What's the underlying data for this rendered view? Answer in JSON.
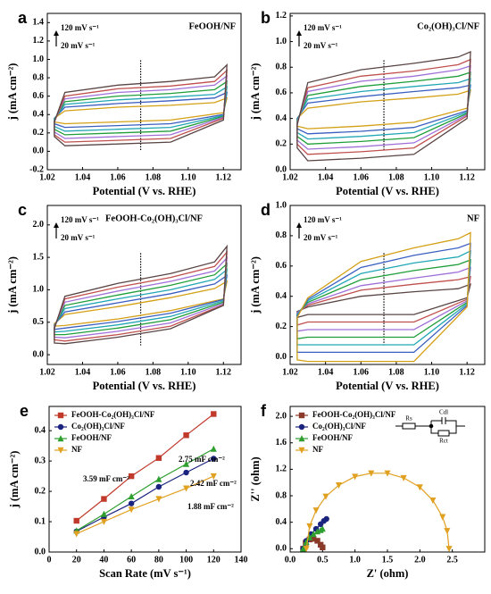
{
  "chart_data": [
    {
      "type": "line",
      "closed": true,
      "panel_label": "a",
      "sample": "FeOOH/NF",
      "sample_color": "#1f9e3a",
      "scan_high": "120 mV s⁻¹",
      "scan_low": "20 mV s⁻¹",
      "vline": 1.073,
      "x_label": "Potential (V vs. RHE)",
      "y_label": "j (mA cm⁻²)",
      "xlim": [
        1.02,
        1.13
      ],
      "xticks": [
        1.02,
        1.04,
        1.06,
        1.08,
        {
          "value": 1.1,
          "label": "1.10"
        },
        1.12
      ],
      "ylim": [
        -0.2,
        1.5
      ],
      "yticks": [
        -0.2,
        {
          "value": 0,
          "label": "0.0"
        },
        0.2,
        0.4,
        0.6,
        0.8,
        {
          "value": 1,
          "label": "1.0"
        },
        1.2,
        1.4
      ],
      "x": [
        1.024,
        1.03,
        1.06,
        1.09,
        1.115,
        1.122,
        1.12,
        1.09,
        1.06,
        1.03,
        1.024
      ],
      "series": [
        {
          "color": "#d4a017",
          "values": [
            0.36,
            0.44,
            0.48,
            0.5,
            0.53,
            0.58,
            0.42,
            0.34,
            0.32,
            0.3,
            0.32
          ]
        },
        {
          "color": "#3b5fc0",
          "values": [
            0.36,
            0.48,
            0.52,
            0.55,
            0.58,
            0.64,
            0.4,
            0.3,
            0.28,
            0.26,
            0.3
          ]
        },
        {
          "color": "#23a7b5",
          "values": [
            0.35,
            0.51,
            0.56,
            0.59,
            0.62,
            0.7,
            0.39,
            0.26,
            0.24,
            0.22,
            0.27
          ]
        },
        {
          "color": "#1f9e3a",
          "values": [
            0.34,
            0.54,
            0.6,
            0.63,
            0.67,
            0.76,
            0.38,
            0.22,
            0.2,
            0.18,
            0.24
          ]
        },
        {
          "color": "#a070d8",
          "values": [
            0.33,
            0.57,
            0.64,
            0.67,
            0.72,
            0.82,
            0.37,
            0.18,
            0.16,
            0.14,
            0.21
          ]
        },
        {
          "color": "#c0504d",
          "values": [
            0.32,
            0.6,
            0.68,
            0.71,
            0.76,
            0.88,
            0.36,
            0.14,
            0.12,
            0.1,
            0.18
          ]
        },
        {
          "color": "#5a4545",
          "values": [
            0.32,
            0.64,
            0.72,
            0.76,
            0.81,
            0.94,
            0.34,
            0.1,
            0.08,
            0.06,
            0.16
          ]
        }
      ]
    },
    {
      "type": "line",
      "closed": true,
      "panel_label": "b",
      "sample": "Co₂(OH)₃Cl/NF",
      "sample_color": "#1a237e",
      "scan_high": "120 mV s⁻¹",
      "scan_low": "20 mV s⁻¹",
      "vline": 1.073,
      "x_label": "Potential (V vs. RHE)",
      "y_label": "j (mA cm⁻²)",
      "xlim": [
        1.02,
        1.13
      ],
      "xticks": [
        1.02,
        1.04,
        1.06,
        1.08,
        {
          "value": 1.1,
          "label": "1.10"
        },
        1.12
      ],
      "ylim": [
        0,
        1.22
      ],
      "yticks": [
        {
          "value": 0,
          "label": "0.0"
        },
        0.2,
        0.4,
        0.6,
        0.8,
        {
          "value": 1,
          "label": "1.0"
        },
        1.2
      ],
      "x": [
        1.024,
        1.03,
        1.06,
        1.09,
        1.115,
        1.122,
        1.12,
        1.09,
        1.06,
        1.03,
        1.024
      ],
      "series": [
        {
          "color": "#d4a017",
          "values": [
            0.4,
            0.48,
            0.53,
            0.56,
            0.59,
            0.62,
            0.48,
            0.37,
            0.34,
            0.32,
            0.34
          ]
        },
        {
          "color": "#3b5fc0",
          "values": [
            0.4,
            0.52,
            0.57,
            0.61,
            0.64,
            0.66,
            0.46,
            0.33,
            0.3,
            0.28,
            0.32
          ]
        },
        {
          "color": "#23a7b5",
          "values": [
            0.39,
            0.55,
            0.61,
            0.65,
            0.68,
            0.71,
            0.45,
            0.29,
            0.26,
            0.24,
            0.29
          ]
        },
        {
          "color": "#1f9e3a",
          "values": [
            0.38,
            0.58,
            0.65,
            0.69,
            0.73,
            0.76,
            0.44,
            0.25,
            0.22,
            0.2,
            0.26
          ]
        },
        {
          "color": "#a070d8",
          "values": [
            0.37,
            0.61,
            0.69,
            0.73,
            0.78,
            0.81,
            0.43,
            0.21,
            0.18,
            0.16,
            0.23
          ]
        },
        {
          "color": "#c0504d",
          "values": [
            0.36,
            0.64,
            0.73,
            0.77,
            0.82,
            0.86,
            0.42,
            0.17,
            0.14,
            0.12,
            0.2
          ]
        },
        {
          "color": "#5a4545",
          "values": [
            0.35,
            0.68,
            0.78,
            0.83,
            0.88,
            0.92,
            0.4,
            0.12,
            0.09,
            0.07,
            0.17
          ]
        }
      ]
    },
    {
      "type": "line",
      "closed": true,
      "panel_label": "c",
      "sample": "FeOOH-Co₂(OH)₃Cl/NF",
      "sample_color": "#a0302a",
      "scan_high": "120 mV s⁻¹",
      "scan_low": "20 mV s⁻¹",
      "vline": 1.073,
      "x_label": "Potential (V vs. RHE)",
      "y_label": "j (mA cm⁻²)",
      "xlim": [
        1.02,
        1.13
      ],
      "xticks": [
        1.02,
        1.04,
        1.06,
        1.08,
        {
          "value": 1.1,
          "label": "1.10"
        },
        1.12
      ],
      "ylim": [
        -0.15,
        2.3
      ],
      "yticks": [
        {
          "value": 0,
          "label": "0.0"
        },
        0.5,
        {
          "value": 1,
          "label": "1.0"
        },
        1.5,
        {
          "value": 2,
          "label": "2.0"
        }
      ],
      "x": [
        1.024,
        1.03,
        1.06,
        1.09,
        1.115,
        1.122,
        1.12,
        1.09,
        1.06,
        1.03,
        1.024
      ],
      "series": [
        {
          "color": "#d4a017",
          "values": [
            0.48,
            0.62,
            0.74,
            0.88,
            1.02,
            1.13,
            0.86,
            0.68,
            0.55,
            0.45,
            0.44
          ]
        },
        {
          "color": "#3b5fc0",
          "values": [
            0.46,
            0.66,
            0.8,
            0.94,
            1.09,
            1.22,
            0.85,
            0.64,
            0.51,
            0.41,
            0.39
          ]
        },
        {
          "color": "#23a7b5",
          "values": [
            0.45,
            0.71,
            0.86,
            1.0,
            1.16,
            1.31,
            0.83,
            0.59,
            0.46,
            0.36,
            0.35
          ]
        },
        {
          "color": "#1f9e3a",
          "values": [
            0.44,
            0.76,
            0.92,
            1.07,
            1.23,
            1.4,
            0.81,
            0.54,
            0.41,
            0.31,
            0.31
          ]
        },
        {
          "color": "#a070d8",
          "values": [
            0.43,
            0.81,
            0.98,
            1.13,
            1.29,
            1.49,
            0.79,
            0.49,
            0.36,
            0.26,
            0.27
          ]
        },
        {
          "color": "#c0504d",
          "values": [
            0.42,
            0.86,
            1.04,
            1.19,
            1.36,
            1.58,
            0.77,
            0.44,
            0.31,
            0.21,
            0.23
          ]
        },
        {
          "color": "#5a4545",
          "values": [
            0.4,
            0.9,
            1.1,
            1.25,
            1.43,
            1.67,
            0.76,
            0.4,
            0.27,
            0.17,
            0.18
          ]
        }
      ]
    },
    {
      "type": "line",
      "closed": true,
      "panel_label": "d",
      "sample": "NF",
      "sample_color": "#e0a020",
      "scan_high": "120 mV s⁻¹",
      "scan_low": "20 mV s⁻¹",
      "vline": 1.073,
      "x_label": "Potential (V vs. RHE)",
      "y_label": "j (mA cm⁻²)",
      "xlim": [
        1.02,
        1.13
      ],
      "xticks": [
        1.02,
        1.04,
        1.06,
        1.08,
        {
          "value": 1.1,
          "label": "1.10"
        },
        1.12
      ],
      "ylim": [
        -0.05,
        1.0
      ],
      "yticks": [
        {
          "value": 0,
          "label": "0.0"
        },
        0.2,
        0.4,
        0.6,
        0.8,
        {
          "value": 1,
          "label": "1.0"
        }
      ],
      "x": [
        1.024,
        1.03,
        1.06,
        1.09,
        1.115,
        1.122,
        1.12,
        1.09,
        1.06,
        1.03,
        1.024
      ],
      "series": [
        {
          "color": "#5a4545",
          "values": [
            0.3,
            0.33,
            0.4,
            0.43,
            0.45,
            0.48,
            0.39,
            0.28,
            0.28,
            0.28,
            0.26
          ]
        },
        {
          "color": "#c0504d",
          "values": [
            0.29,
            0.34,
            0.44,
            0.48,
            0.51,
            0.53,
            0.38,
            0.23,
            0.23,
            0.23,
            0.21
          ]
        },
        {
          "color": "#a070d8",
          "values": [
            0.29,
            0.35,
            0.47,
            0.52,
            0.56,
            0.59,
            0.37,
            0.18,
            0.18,
            0.18,
            0.17
          ]
        },
        {
          "color": "#1f9e3a",
          "values": [
            0.28,
            0.36,
            0.51,
            0.57,
            0.61,
            0.64,
            0.36,
            0.13,
            0.13,
            0.13,
            0.12
          ]
        },
        {
          "color": "#23a7b5",
          "values": [
            0.28,
            0.37,
            0.55,
            0.62,
            0.66,
            0.7,
            0.35,
            0.08,
            0.08,
            0.08,
            0.08
          ]
        },
        {
          "color": "#3b5fc0",
          "values": [
            0.27,
            0.38,
            0.59,
            0.67,
            0.72,
            0.75,
            0.34,
            0.03,
            0.03,
            0.03,
            0.03
          ]
        },
        {
          "color": "#d4a017",
          "values": [
            0.26,
            0.39,
            0.63,
            0.72,
            0.78,
            0.82,
            0.33,
            -0.03,
            -0.03,
            -0.03,
            -0.02
          ]
        }
      ]
    },
    {
      "type": "scatter",
      "panel_label": "e",
      "x_label": "Scan Rate (mV s⁻¹)",
      "y_label": "j (mA cm⁻²)",
      "xlim": [
        0,
        140
      ],
      "xticks": [
        0,
        20,
        40,
        60,
        80,
        100,
        120,
        140
      ],
      "ylim": [
        0,
        0.48
      ],
      "yticks": [
        {
          "value": 0,
          "label": "0.0"
        },
        0.1,
        0.2,
        0.3,
        0.4
      ],
      "x": [
        20,
        40,
        60,
        80,
        100,
        120
      ],
      "series": [
        {
          "name": "FeOOH-Co₂(OH)₃Cl/NF",
          "color": "#c0392b",
          "marker": "square",
          "values": [
            0.103,
            0.175,
            0.25,
            0.31,
            0.385,
            0.455
          ]
        },
        {
          "name": "Co₂(OH)₃Cl/NF",
          "color": "#1a237e",
          "marker": "circle",
          "values": [
            0.068,
            0.115,
            0.16,
            0.215,
            0.262,
            0.308
          ]
        },
        {
          "name": "FeOOH/NF",
          "color": "#2e9e2e",
          "marker": "triangle",
          "values": [
            0.07,
            0.125,
            0.183,
            0.24,
            0.29,
            0.34
          ]
        },
        {
          "name": "NF",
          "color": "#e0a020",
          "marker": "down-triangle",
          "values": [
            0.06,
            0.1,
            0.14,
            0.175,
            0.21,
            0.25
          ]
        }
      ],
      "annotations": [
        {
          "text": "3.59 mF cm⁻²",
          "color": "#c0392b"
        },
        {
          "text": "2.75 mF cm⁻²",
          "color": "#2e9e2e"
        },
        {
          "text": "2.42 mF cm⁻²",
          "color": "#1a237e"
        },
        {
          "text": "1.88 mF cm⁻²",
          "color": "#e0a020"
        }
      ]
    },
    {
      "type": "line",
      "panel_label": "f",
      "x_label": "Z' (ohm)",
      "y_label": "Z'' (ohm)",
      "xlim": [
        0,
        3
      ],
      "xticks": [
        {
          "value": 0,
          "label": "0.0"
        },
        0.5,
        {
          "value": 1,
          "label": "1.0"
        },
        1.5,
        {
          "value": 2,
          "label": "2.0"
        },
        2.5
      ],
      "ylim": [
        -0.05,
        2.15
      ],
      "yticks": [
        {
          "value": 0,
          "label": "0.0"
        },
        0.4,
        0.8,
        {
          "value": 1.2,
          "label": "1.2"
        },
        1.6,
        {
          "value": 2,
          "label": "2.0"
        }
      ],
      "circuit_labels": [
        "Rs",
        "Cdl",
        "Rct"
      ],
      "series": [
        {
          "name": "FeOOH-Co₂(OH)₃Cl/NF",
          "color": "#8b3a2a",
          "marker": "square",
          "x": [
            0.2,
            0.24,
            0.3,
            0.36,
            0.42,
            0.47,
            0.5
          ],
          "values": [
            0,
            0.09,
            0.14,
            0.15,
            0.12,
            0.06,
            0.02
          ]
        },
        {
          "name": "Co₂(OH)₃Cl/NF",
          "color": "#1a237e",
          "marker": "circle",
          "x": [
            0.2,
            0.25,
            0.32,
            0.4,
            0.47,
            0.52,
            0.56
          ],
          "values": [
            0,
            0.12,
            0.22,
            0.3,
            0.37,
            0.42,
            0.45
          ]
        },
        {
          "name": "FeOOH/NF",
          "color": "#2e9e2e",
          "marker": "triangle",
          "x": [
            0.2,
            0.25,
            0.3,
            0.36,
            0.42,
            0.47,
            0.5
          ],
          "values": [
            0,
            0.1,
            0.17,
            0.22,
            0.26,
            0.28,
            0.3
          ]
        },
        {
          "name": "NF",
          "color": "#e0a020",
          "marker": "down-triangle",
          "x": [
            0.25,
            0.3,
            0.4,
            0.55,
            0.75,
            1.0,
            1.25,
            1.5,
            1.75,
            2.0,
            2.2,
            2.35,
            2.42,
            2.45
          ],
          "values": [
            0,
            0.34,
            0.58,
            0.79,
            0.96,
            1.09,
            1.14,
            1.14,
            1.07,
            0.93,
            0.73,
            0.48,
            0.27,
            0
          ]
        }
      ]
    }
  ]
}
